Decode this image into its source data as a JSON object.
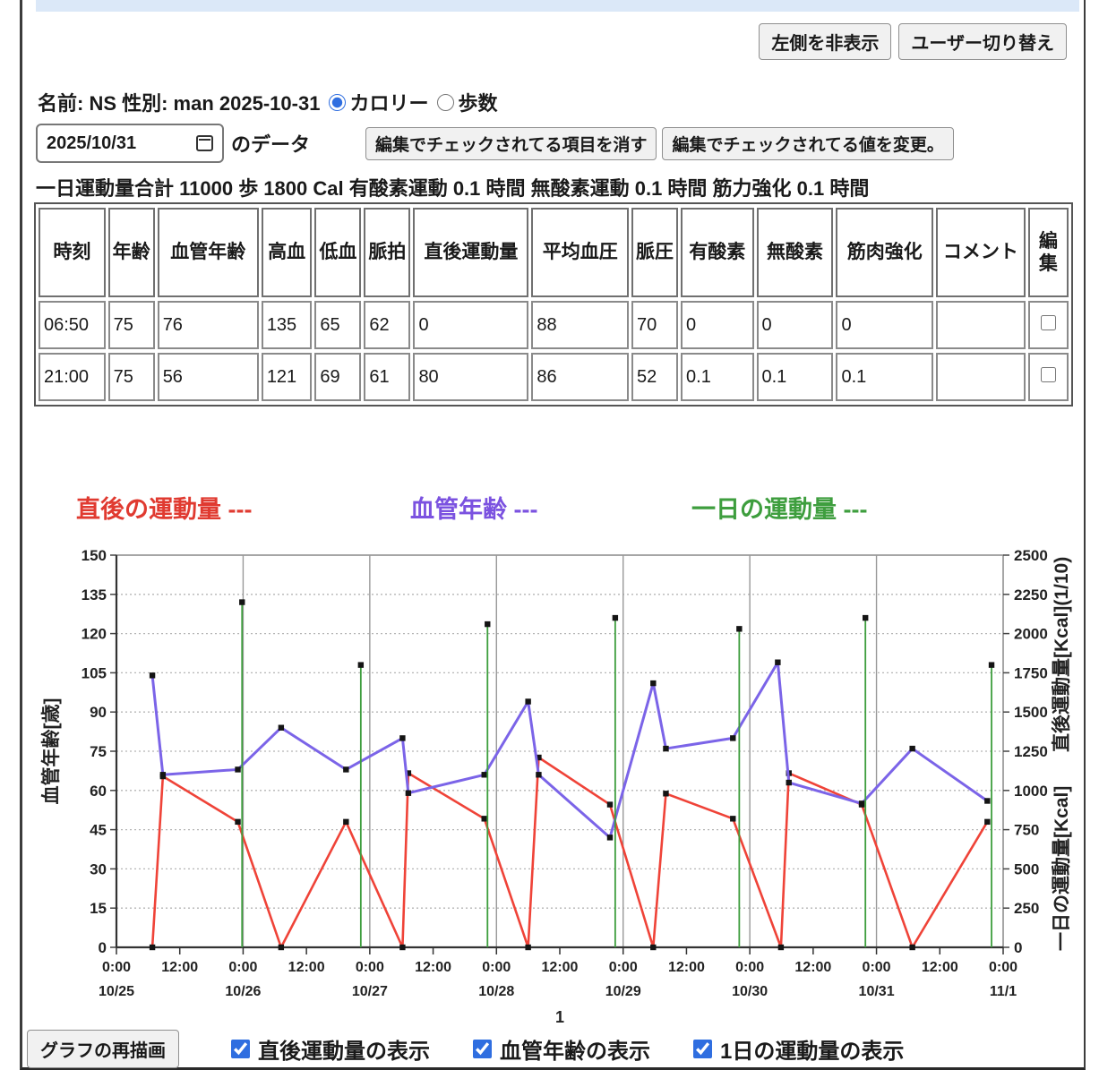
{
  "colors": {
    "top_bar": "#dbe8f8",
    "accent_blue": "#2f6ee0",
    "red_series": "#e84335",
    "purple_series": "#7b64e8",
    "green_series": "#3e9e3e"
  },
  "toolbar": {
    "hide_left_label": "左側を非表示",
    "switch_user_label": "ユーザー切り替え"
  },
  "profile": {
    "text": "名前: NS 性別: man 2025-10-31",
    "radio_calorie": "カロリー",
    "radio_steps": "歩数",
    "selected_radio": "カロリー"
  },
  "date_row": {
    "date_value": "2025/10/31",
    "suffix": "のデータ",
    "clear_button": "編集でチェックされてる項目を消す",
    "change_button": "編集でチェックされてる値を変更。"
  },
  "summary": "一日運動量合計 11000 歩 1800 Cal 有酸素運動 0.1 時間 無酸素運動 0.1 時間 筋力強化 0.1 時間",
  "table": {
    "headers": [
      "時刻",
      "年齢",
      "血管年齢",
      "高血",
      "低血",
      "脈拍",
      "直後運動量",
      "平均血圧",
      "脈圧",
      "有酸素",
      "無酸素",
      "筋肉強化",
      "コメント",
      "編集"
    ],
    "rows": [
      {
        "cells": [
          "06:50",
          "75",
          "76",
          "135",
          "65",
          "62",
          "0",
          "88",
          "70",
          "0",
          "0",
          "0",
          ""
        ],
        "edit_checked": false
      },
      {
        "cells": [
          "21:00",
          "75",
          "56",
          "121",
          "69",
          "61",
          "80",
          "86",
          "52",
          "0.1",
          "0.1",
          "0.1",
          ""
        ],
        "edit_checked": false
      }
    ]
  },
  "legend": [
    {
      "label": "直後の運動量 ---",
      "color": "#e03a30",
      "x": 85
    },
    {
      "label": "血管年齢 ---",
      "color": "#7b52e0",
      "x": 458
    },
    {
      "label": "一日の運動量 ---",
      "color": "#3e9e3e",
      "x": 772
    }
  ],
  "chart_data": {
    "type": "line",
    "x_axis": {
      "start": "10/25 0:00",
      "end": "11/1 0:00",
      "hours_total": 168,
      "tick_every_hours": 12,
      "time_label_midnight": "0:00",
      "time_label_noon": "12:00",
      "day_labels": [
        "10/25",
        "10/26",
        "10/27",
        "10/28",
        "10/29",
        "10/30",
        "10/31",
        "11/1"
      ],
      "sub_label": "1"
    },
    "y_left": {
      "label": "血管年齢[歳]",
      "min": 0,
      "max": 150,
      "step": 15
    },
    "y_right": {
      "label_upper": "直後運動量[Kcal](1/10)",
      "label_lower": "一日の運動量[Kcal]",
      "min": 0,
      "max": 2500,
      "step": 250
    },
    "grid": {
      "horizontal": "dotted",
      "vertical_at_midnight": "solid"
    },
    "series": [
      {
        "name": "直後の運動量",
        "axis": "right",
        "style": "line",
        "color": "#ef4338",
        "note": "plotted on right axis at 10x measured Kcal per (1/10) label",
        "points": [
          [
            6.8,
            0
          ],
          [
            8.8,
            1090
          ],
          [
            23.0,
            800
          ],
          [
            31.2,
            0
          ],
          [
            43.5,
            800
          ],
          [
            54.2,
            0
          ],
          [
            55.3,
            1110
          ],
          [
            69.7,
            820
          ],
          [
            78.0,
            0
          ],
          [
            80.0,
            1210
          ],
          [
            93.5,
            910
          ],
          [
            101.7,
            0
          ],
          [
            104.1,
            980
          ],
          [
            116.8,
            820
          ],
          [
            125.9,
            0
          ],
          [
            127.4,
            1110
          ],
          [
            141.2,
            910
          ],
          [
            150.8,
            0
          ],
          [
            165.0,
            800
          ]
        ]
      },
      {
        "name": "血管年齢",
        "axis": "left",
        "style": "line",
        "color": "#7b64e8",
        "points": [
          [
            6.8,
            104
          ],
          [
            8.8,
            66
          ],
          [
            23.0,
            68
          ],
          [
            31.2,
            84
          ],
          [
            43.5,
            68
          ],
          [
            54.2,
            80
          ],
          [
            55.3,
            59
          ],
          [
            69.7,
            66
          ],
          [
            78.0,
            94
          ],
          [
            80.0,
            66
          ],
          [
            93.5,
            42
          ],
          [
            101.7,
            101
          ],
          [
            104.1,
            76
          ],
          [
            116.8,
            80
          ],
          [
            125.3,
            109
          ],
          [
            127.4,
            63
          ],
          [
            141.2,
            55
          ],
          [
            150.8,
            76
          ],
          [
            165.0,
            56
          ]
        ]
      },
      {
        "name": "一日の運動量",
        "axis": "right",
        "style": "impulse",
        "color": "#3e9e3e",
        "points": [
          [
            23.8,
            2200
          ],
          [
            46.3,
            1800
          ],
          [
            70.3,
            2060
          ],
          [
            94.5,
            2100
          ],
          [
            118.0,
            2030
          ],
          [
            141.9,
            2100
          ],
          [
            165.8,
            1800
          ]
        ]
      }
    ]
  },
  "footer": {
    "redraw_button": "グラフの再描画",
    "checkboxes": [
      {
        "label": "直後運動量の表示",
        "checked": true
      },
      {
        "label": "血管年齢の表示",
        "checked": true
      },
      {
        "label": "1日の運動量の表示",
        "checked": true
      }
    ]
  }
}
